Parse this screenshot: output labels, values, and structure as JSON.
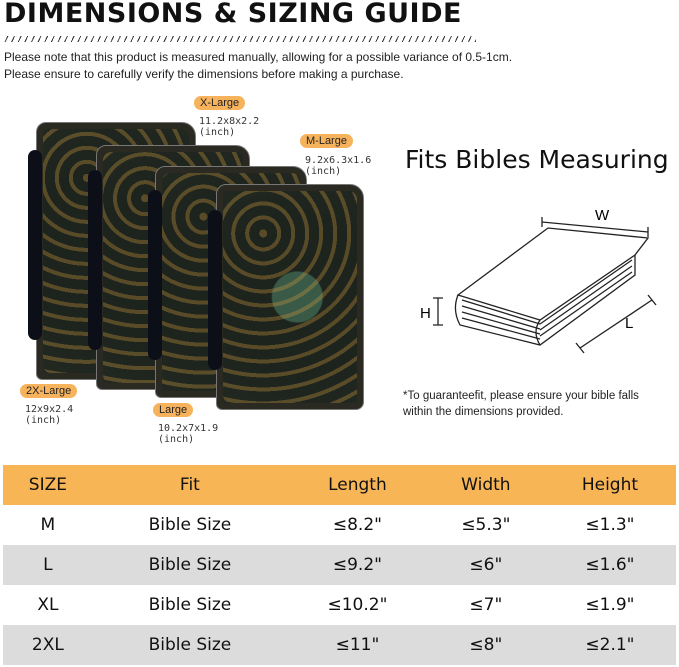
{
  "title": "DIMENSIONS & SIZING GUIDE",
  "notes": [
    "Please note that this product is measured manually, allowing for a possible variance of 0.5-1cm.",
    "Please ensure to carefully verify the dimensions before making a purchase."
  ],
  "sizes": [
    {
      "label": "X-Large",
      "dims": "11.2x8x2.2",
      "unit": "(inch)"
    },
    {
      "label": "M-Large",
      "dims": "9.2x6.3x1.6",
      "unit": "(inch)"
    },
    {
      "label": "2X-Large",
      "dims": "12x9x2.4",
      "unit": "(inch)"
    },
    {
      "label": "Large",
      "dims": "10.2x7x1.9",
      "unit": "(inch)"
    }
  ],
  "fits_heading": "Fits Bibles Measuring",
  "diagram": {
    "w": "W",
    "h": "H",
    "l": "L"
  },
  "fine_print": [
    "*To guaranteefit, please ensure your bible falls",
    "within the dimensions provided."
  ],
  "accent": "#f8b556",
  "table": {
    "headers": [
      "SIZE",
      "Fit",
      "Length",
      "Width",
      "Height"
    ],
    "rows": [
      [
        "M",
        "Bible Size",
        "≤8.2\"",
        "≤5.3\"",
        "≤1.3\""
      ],
      [
        "L",
        "Bible Size",
        "≤9.2\"",
        "≤6\"",
        "≤1.6\""
      ],
      [
        "XL",
        "Bible Size",
        "≤10.2\"",
        "≤7\"",
        "≤1.9\""
      ],
      [
        "2XL",
        "Bible Size",
        "≤11\"",
        "≤8\"",
        "≤2.1\""
      ]
    ]
  }
}
